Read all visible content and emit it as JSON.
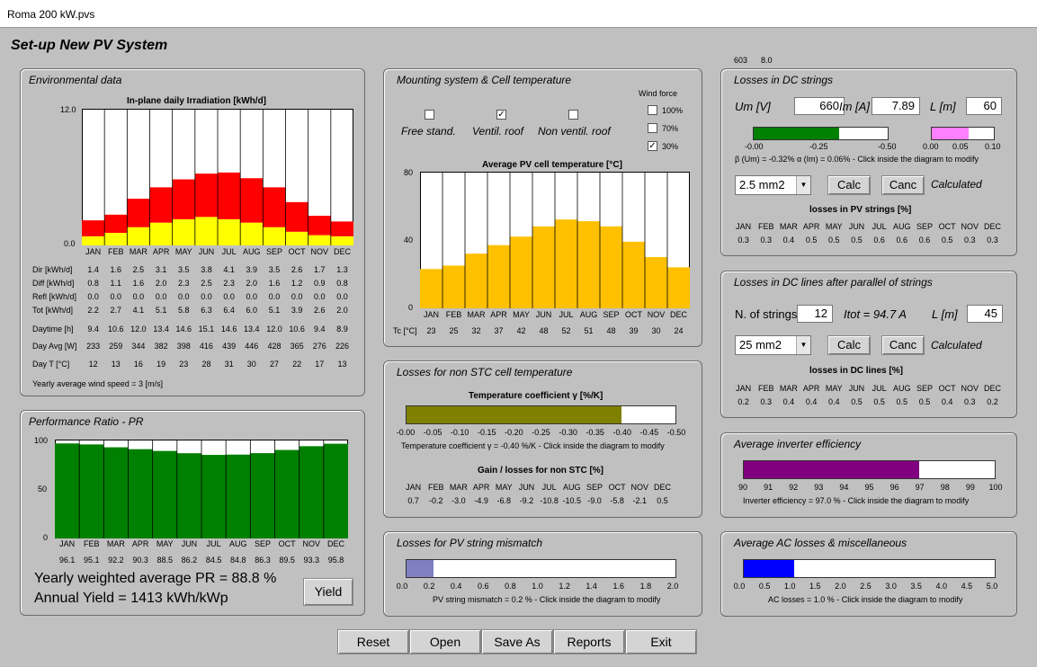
{
  "window": {
    "title": "Roma 200 kW.pvs"
  },
  "page_title": "Set-up New PV System",
  "months": [
    "JAN",
    "FEB",
    "MAR",
    "APR",
    "MAY",
    "JUN",
    "JUL",
    "AUG",
    "SEP",
    "OCT",
    "NOV",
    "DEC"
  ],
  "env": {
    "title": "Environmental data",
    "chart_title": "In-plane daily Irradiation [kWh/d]",
    "ymax_label": "12.0",
    "ymin_label": "0.0",
    "colors": {
      "direct": "#ff0000",
      "diffuse": "#ffff00"
    },
    "rows": [
      {
        "label": "Dir [kWh/d]",
        "values": [
          "1.4",
          "1.6",
          "2.5",
          "3.1",
          "3.5",
          "3.8",
          "4.1",
          "3.9",
          "3.5",
          "2.6",
          "1.7",
          "1.3"
        ]
      },
      {
        "label": "Diff [kWh/d]",
        "values": [
          "0.8",
          "1.1",
          "1.6",
          "2.0",
          "2.3",
          "2.5",
          "2.3",
          "2.0",
          "1.6",
          "1.2",
          "0.9",
          "0.8"
        ]
      },
      {
        "label": "Refl [kWh/d]",
        "values": [
          "0.0",
          "0.0",
          "0.0",
          "0.0",
          "0.0",
          "0.0",
          "0.0",
          "0.0",
          "0.0",
          "0.0",
          "0.0",
          "0.0"
        ]
      },
      {
        "label": "Tot [kWh/d]",
        "values": [
          "2.2",
          "2.7",
          "4.1",
          "5.1",
          "5.8",
          "6.3",
          "6.4",
          "6.0",
          "5.1",
          "3.9",
          "2.6",
          "2.0"
        ]
      },
      {
        "label": "Daytime [h]",
        "values": [
          "9.4",
          "10.6",
          "12.0",
          "13.4",
          "14.6",
          "15.1",
          "14.6",
          "13.4",
          "12.0",
          "10.6",
          "9.4",
          "8.9"
        ]
      },
      {
        "label": "Day Avg [W]",
        "values": [
          "233",
          "259",
          "344",
          "382",
          "398",
          "416",
          "439",
          "446",
          "428",
          "365",
          "276",
          "226"
        ]
      },
      {
        "label": "Day T [°C]",
        "values": [
          "12",
          "13",
          "16",
          "19",
          "23",
          "28",
          "31",
          "30",
          "27",
          "22",
          "17",
          "13"
        ]
      }
    ],
    "wind_speed_text": "Yearly average wind speed =    3 [m/s]"
  },
  "pr": {
    "title": "Performance Ratio - PR",
    "y_labels": [
      "100",
      "50",
      "0"
    ],
    "values": [
      96.1,
      95.1,
      92.2,
      90.3,
      88.5,
      86.2,
      84.5,
      84.8,
      86.3,
      89.5,
      93.3,
      95.8
    ],
    "value_labels": [
      "96.1",
      "95.1",
      "92.2",
      "90.3",
      "88.5",
      "86.2",
      "84.5",
      "84.8",
      "86.3",
      "89.5",
      "93.3",
      "95.8"
    ],
    "bar_color": "#008000",
    "yearly_pr": "Yearly weighted average PR = 88.8 %",
    "annual_yield": "Annual Yield = 1413 kWh/kWp",
    "yield_button": "Yield"
  },
  "mount": {
    "title": "Mounting system & Cell temperature",
    "wind_force_label": "Wind force",
    "options": [
      {
        "label": "Free stand.",
        "checked": false
      },
      {
        "label": "Ventil. roof",
        "checked": true
      },
      {
        "label": "Non ventil. roof",
        "checked": false
      }
    ],
    "wind_options": [
      {
        "label": "100%",
        "checked": false
      },
      {
        "label": "70%",
        "checked": false
      },
      {
        "label": "30%",
        "checked": true
      }
    ],
    "chart_title": "Average PV cell temperature [°C]",
    "y_labels": [
      "80",
      "40",
      "0"
    ],
    "values": [
      23,
      25,
      32,
      37,
      42,
      48,
      52,
      51,
      48,
      39,
      30,
      24
    ],
    "tc_label": "Tc [°C]",
    "tc_values": [
      "23",
      "25",
      "32",
      "37",
      "42",
      "48",
      "52",
      "51",
      "48",
      "39",
      "30",
      "24"
    ],
    "bar_color": "#ffc000"
  },
  "nonstc": {
    "title": "Losses for non STC cell temperature",
    "bar_title": "Temperature coefficient γ [%/K]",
    "fill_fraction": 0.8,
    "fill_color": "#808000",
    "ticks": [
      "-0.00",
      "-0.05",
      "-0.10",
      "-0.15",
      "-0.20",
      "-0.25",
      "-0.30",
      "-0.35",
      "-0.40",
      "-0.45",
      "-0.50"
    ],
    "note": "Temperature coefficient γ = -0.40 %/K  -  Click inside the diagram to modify",
    "gain_title": "Gain / losses for non STC [%]",
    "gain_values": [
      "0.7",
      "-0.2",
      "-3.0",
      "-4.9",
      "-6.8",
      "-9.2",
      "-10.8",
      "-10.5",
      "-9.0",
      "-5.8",
      "-2.1",
      "0.5"
    ]
  },
  "mismatch": {
    "title": "Losses for PV string mismatch",
    "fill_fraction": 0.1,
    "fill_color": "#8080c0",
    "ticks": [
      "0.0",
      "0.2",
      "0.4",
      "0.6",
      "0.8",
      "1.0",
      "1.2",
      "1.4",
      "1.6",
      "1.8",
      "2.0"
    ],
    "note": "PV string mismatch = 0.2 %  -  Click inside the diagram to modify"
  },
  "top_numbers": {
    "a": "603",
    "b": "8.0"
  },
  "dcstrings": {
    "title": "Losses in DC strings",
    "um_label": "Um [V]",
    "um_value": "660",
    "im_label": "Im [A]",
    "im_value": "7.89",
    "l_label": "L [m]",
    "l_value": "60",
    "beta_fill": 0.64,
    "beta_color": "#008000",
    "beta_ticks": [
      "-0.00",
      "-0.25",
      "-0.50"
    ],
    "alpha_fill": 0.6,
    "alpha_color": "#ff80ff",
    "alpha_ticks": [
      "0.00",
      "0.05",
      "0.10"
    ],
    "coeff_note": "β (Um) = -0.32%   α (Im) = 0.06%  -  Click inside the diagram to modify",
    "section": "2.5 mm2",
    "calc": "Calc",
    "canc": "Canc",
    "calculated": "Calculated",
    "losses_title": "losses in PV strings [%]",
    "losses": [
      "0.3",
      "0.3",
      "0.4",
      "0.5",
      "0.5",
      "0.5",
      "0.6",
      "0.6",
      "0.6",
      "0.5",
      "0.3",
      "0.3"
    ]
  },
  "dclines": {
    "title": "Losses in DC lines after parallel of strings",
    "n_label": "N. of strings",
    "n_value": "12",
    "itot": "Itot = 94.7 A",
    "l_label": "L [m]",
    "l_value": "45",
    "section": "25 mm2",
    "calc": "Calc",
    "canc": "Canc",
    "calculated": "Calculated",
    "losses_title": "losses in DC lines [%]",
    "losses": [
      "0.2",
      "0.3",
      "0.4",
      "0.4",
      "0.4",
      "0.5",
      "0.5",
      "0.5",
      "0.5",
      "0.4",
      "0.3",
      "0.2"
    ]
  },
  "inverter": {
    "title": "Average inverter efficiency",
    "fill_fraction": 0.7,
    "fill_color": "#800080",
    "ticks": [
      "90",
      "91",
      "92",
      "93",
      "94",
      "95",
      "96",
      "97",
      "98",
      "99",
      "100"
    ],
    "note": "Inverter efficiency = 97.0 %  -  Click inside the diagram to modify"
  },
  "acloss": {
    "title": "Average AC losses & miscellaneous",
    "fill_fraction": 0.2,
    "fill_color": "#0000ff",
    "ticks": [
      "0.0",
      "0.5",
      "1.0",
      "1.5",
      "2.0",
      "2.5",
      "3.0",
      "3.5",
      "4.0",
      "4.5",
      "5.0"
    ],
    "note": "AC losses = 1.0 %  -  Click inside the diagram to modify"
  },
  "buttons": {
    "reset": "Reset",
    "open": "Open",
    "save_as": "Save As",
    "reports": "Reports",
    "exit": "Exit"
  }
}
